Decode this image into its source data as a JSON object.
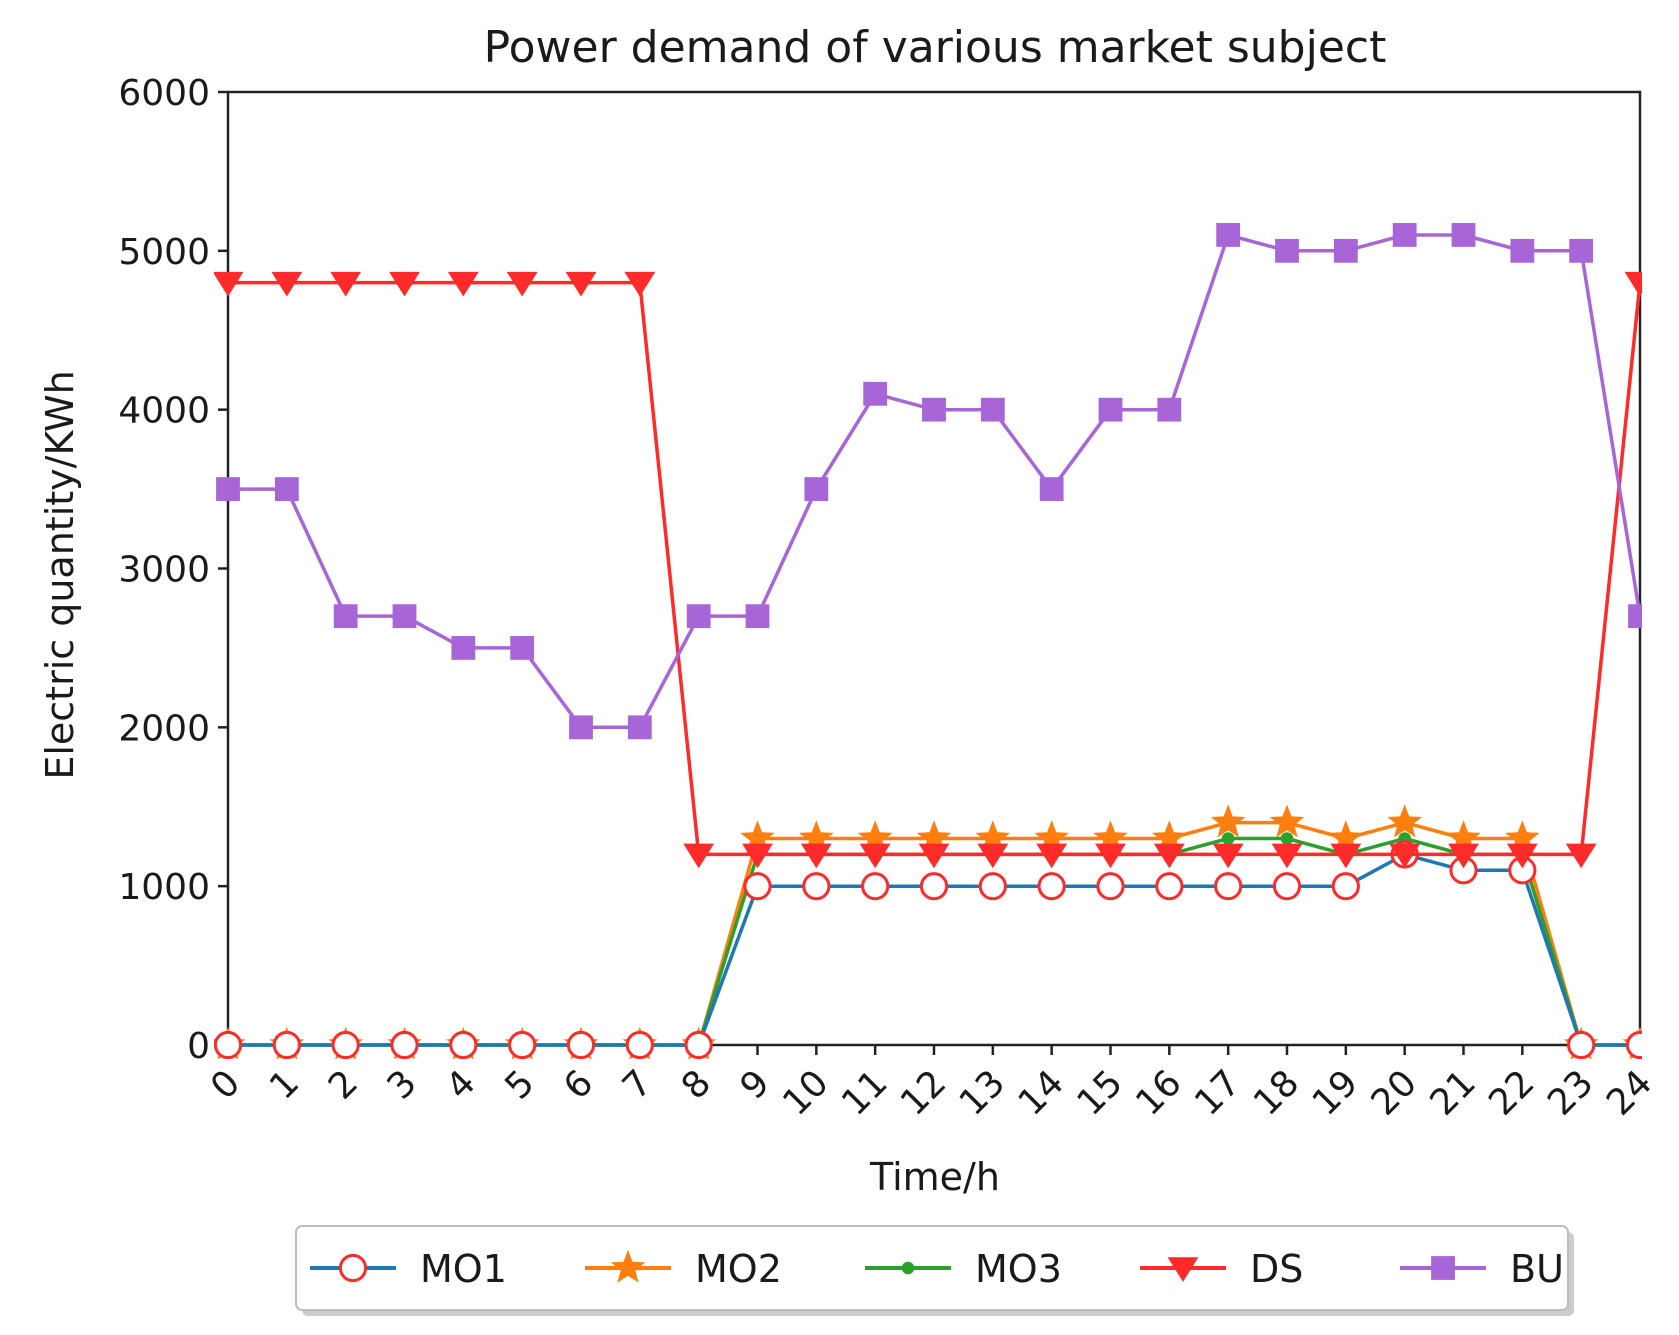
{
  "chart_data": {
    "type": "line",
    "title": "Power demand of various market subject",
    "xlabel": "Time/h",
    "ylabel": "Electric quantity/KWh",
    "xlim": [
      0,
      24
    ],
    "ylim": [
      0,
      6000
    ],
    "x": [
      0,
      1,
      2,
      3,
      4,
      5,
      6,
      7,
      8,
      9,
      10,
      11,
      12,
      13,
      14,
      15,
      16,
      17,
      18,
      19,
      20,
      21,
      22,
      23,
      24
    ],
    "xticks": [
      "0",
      "1",
      "2",
      "3",
      "4",
      "5",
      "6",
      "7",
      "8",
      "9",
      "10",
      "11",
      "12",
      "13",
      "14",
      "15",
      "16",
      "17",
      "18",
      "19",
      "20",
      "21",
      "22",
      "23",
      "24"
    ],
    "yticks": [
      "0",
      "1000",
      "2000",
      "3000",
      "4000",
      "5000",
      "6000"
    ],
    "grid": false,
    "legend_position": "bottom",
    "series": [
      {
        "name": "MO1",
        "color": "#1f77b4",
        "marker": "open-circle",
        "marker_color": "#ff2a2a",
        "values": [
          0,
          0,
          0,
          0,
          0,
          0,
          0,
          0,
          0,
          1000,
          1000,
          1000,
          1000,
          1000,
          1000,
          1000,
          1000,
          1000,
          1000,
          1000,
          1200,
          1100,
          1100,
          0,
          0
        ]
      },
      {
        "name": "MO2",
        "color": "#ff7f0e",
        "marker": "star",
        "marker_color": "#ff7f0e",
        "values": [
          0,
          0,
          0,
          0,
          0,
          0,
          0,
          0,
          0,
          1300,
          1300,
          1300,
          1300,
          1300,
          1300,
          1300,
          1300,
          1400,
          1400,
          1300,
          1400,
          1300,
          1300,
          0,
          0
        ]
      },
      {
        "name": "MO3",
        "color": "#2ca02c",
        "marker": "dot",
        "marker_color": "#2ca02c",
        "values": [
          0,
          0,
          0,
          0,
          0,
          0,
          0,
          0,
          0,
          1200,
          1200,
          1200,
          1200,
          1200,
          1200,
          1200,
          1200,
          1300,
          1300,
          1200,
          1300,
          1200,
          1200,
          0,
          0
        ]
      },
      {
        "name": "DS",
        "color": "#ff2a2a",
        "marker": "triangle-down",
        "marker_color": "#ff2a2a",
        "values": [
          4800,
          4800,
          4800,
          4800,
          4800,
          4800,
          4800,
          4800,
          1200,
          1200,
          1200,
          1200,
          1200,
          1200,
          1200,
          1200,
          1200,
          1200,
          1200,
          1200,
          1200,
          1200,
          1200,
          1200,
          4800
        ]
      },
      {
        "name": "BU",
        "color": "#a865d8",
        "marker": "square",
        "marker_color": "#a865d8",
        "values": [
          3500,
          3500,
          2700,
          2700,
          2500,
          2500,
          2000,
          2000,
          2700,
          2700,
          3500,
          4100,
          4000,
          4000,
          3500,
          4000,
          4000,
          5100,
          5000,
          5000,
          5100,
          5100,
          5000,
          5000,
          2700
        ]
      }
    ]
  }
}
